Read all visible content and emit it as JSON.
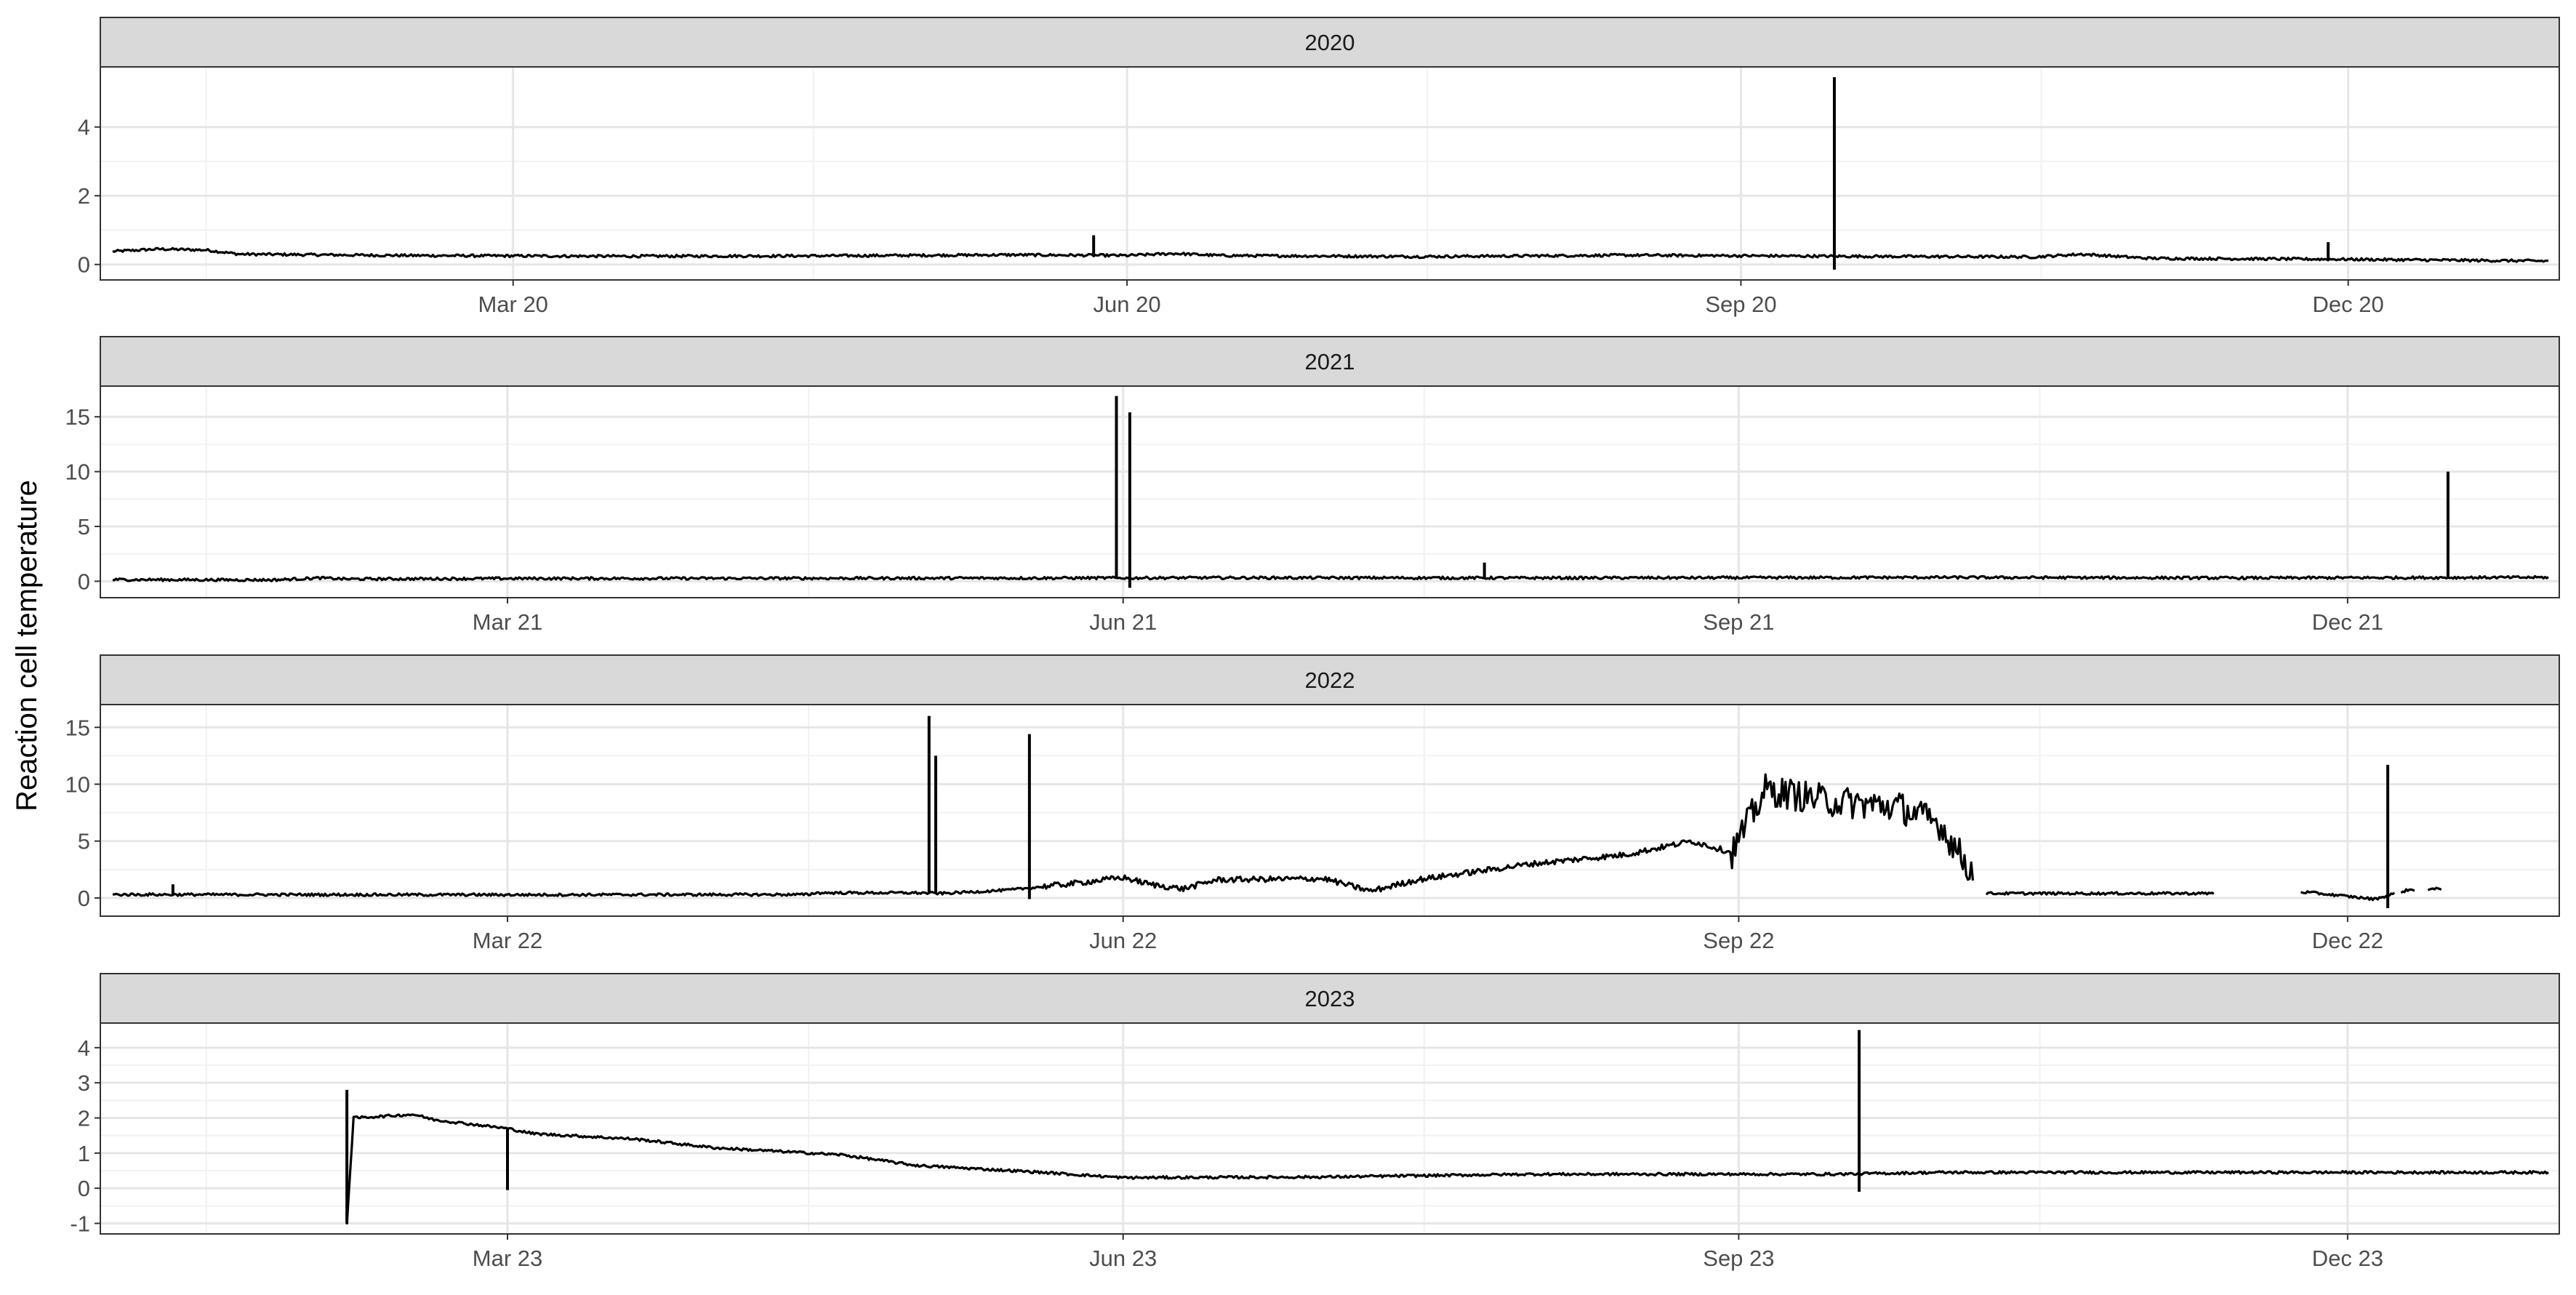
{
  "chart_data": {
    "type": "line",
    "title": "",
    "ylabel": "Reaction cell temperature",
    "xlabel": "",
    "grid": true,
    "line_color": "#000000",
    "strip_color": "#d9d9d9",
    "panels": [
      {
        "name": "2020",
        "ylim": [
          -0.45,
          5.75
        ],
        "yticks": [
          0,
          2,
          4
        ],
        "xticks": [
          {
            "date": "2020-03-01",
            "label": "Mar 20"
          },
          {
            "date": "2020-06-01",
            "label": "Jun 20"
          },
          {
            "date": "2020-09-01",
            "label": "Sep 20"
          },
          {
            "date": "2020-12-01",
            "label": "Dec 20"
          }
        ],
        "baseline": [
          [
            "2020-01-01",
            0.38
          ],
          [
            "2020-01-08",
            0.45
          ],
          [
            "2020-01-15",
            0.42
          ],
          [
            "2020-01-20",
            0.3
          ],
          [
            "2020-02-15",
            0.26
          ],
          [
            "2020-03-15",
            0.24
          ],
          [
            "2020-04-15",
            0.25
          ],
          [
            "2020-05-15",
            0.28
          ],
          [
            "2020-06-01",
            0.26
          ],
          [
            "2020-06-08",
            0.32
          ],
          [
            "2020-06-15",
            0.26
          ],
          [
            "2020-07-15",
            0.23
          ],
          [
            "2020-08-15",
            0.27
          ],
          [
            "2020-09-15",
            0.24
          ],
          [
            "2020-10-15",
            0.22
          ],
          [
            "2020-10-22",
            0.3
          ],
          [
            "2020-11-01",
            0.18
          ],
          [
            "2020-12-01",
            0.15
          ],
          [
            "2020-12-31",
            0.1
          ]
        ],
        "spikes": [
          {
            "date": "2020-05-27",
            "max": 0.85,
            "min": 0.3
          },
          {
            "date": "2020-09-15",
            "max": 5.45,
            "min": -0.15
          },
          {
            "date": "2020-11-28",
            "max": 0.65,
            "min": 0.15
          }
        ],
        "gaps": []
      },
      {
        "name": "2021",
        "ylim": [
          -1.5,
          17.8
        ],
        "yticks": [
          0,
          5,
          10,
          15
        ],
        "xticks": [
          {
            "date": "2021-03-01",
            "label": "Mar 21"
          },
          {
            "date": "2021-06-01",
            "label": "Jun 21"
          },
          {
            "date": "2021-09-01",
            "label": "Sep 21"
          },
          {
            "date": "2021-12-01",
            "label": "Dec 21"
          }
        ],
        "baseline": [
          [
            "2021-01-01",
            0.15
          ],
          [
            "2021-01-25",
            0.12
          ],
          [
            "2021-02-01",
            0.3
          ],
          [
            "2021-02-05",
            0.2
          ],
          [
            "2021-03-01",
            0.25
          ],
          [
            "2021-04-15",
            0.27
          ],
          [
            "2021-05-31",
            0.3
          ],
          [
            "2021-06-15",
            0.32
          ],
          [
            "2021-08-01",
            0.3
          ],
          [
            "2021-09-01",
            0.32
          ],
          [
            "2021-10-01",
            0.35
          ],
          [
            "2021-11-15",
            0.3
          ],
          [
            "2021-12-31",
            0.35
          ]
        ],
        "spikes": [
          {
            "date": "2021-05-31",
            "max": 16.9,
            "min": 0.2
          },
          {
            "date": "2021-06-02",
            "max": 15.4,
            "min": -0.6
          },
          {
            "date": "2021-07-25",
            "max": 1.7,
            "min": 0.3
          },
          {
            "date": "2021-12-16",
            "max": 10.0,
            "min": 0.3
          }
        ],
        "gaps": []
      },
      {
        "name": "2022",
        "ylim": [
          -1.6,
          17.0
        ],
        "yticks": [
          0,
          5,
          10,
          15
        ],
        "xticks": [
          {
            "date": "2022-03-01",
            "label": "Mar 22"
          },
          {
            "date": "2022-06-01",
            "label": "Jun 22"
          },
          {
            "date": "2022-09-01",
            "label": "Sep 22"
          },
          {
            "date": "2022-12-01",
            "label": "Dec 22"
          }
        ],
        "baseline": [
          [
            "2022-01-01",
            0.3
          ],
          [
            "2022-03-01",
            0.28
          ],
          [
            "2022-04-15",
            0.3
          ],
          [
            "2022-04-16",
            0.45
          ],
          [
            "2022-05-01",
            0.45
          ],
          [
            "2022-05-05",
            0.4
          ],
          [
            "2022-05-15",
            0.7
          ],
          [
            "2022-05-25",
            1.3
          ],
          [
            "2022-06-01",
            1.8
          ],
          [
            "2022-06-05",
            1.2
          ],
          [
            "2022-06-10",
            0.8
          ],
          [
            "2022-06-15",
            1.6
          ],
          [
            "2022-07-01",
            1.7
          ],
          [
            "2022-07-08",
            0.6
          ],
          [
            "2022-07-15",
            1.6
          ],
          [
            "2022-08-01",
            3.0
          ],
          [
            "2022-08-15",
            3.8
          ],
          [
            "2022-08-25",
            5.0
          ],
          [
            "2022-08-31",
            4.0
          ],
          [
            "2022-09-05",
            9.5
          ],
          [
            "2022-09-15",
            8.5
          ],
          [
            "2022-09-25",
            8.0
          ],
          [
            "2022-10-01",
            6.5
          ],
          [
            "2022-10-08",
            0.4
          ],
          [
            "2022-11-10",
            0.4
          ],
          [
            "2022-11-25",
            0.5
          ],
          [
            "2022-12-05",
            -0.1
          ],
          [
            "2022-12-10",
            0.7
          ],
          [
            "2022-12-15",
            0.8
          ]
        ],
        "noisy_ranges": [
          {
            "start": "2022-05-20",
            "end": "2022-08-30",
            "amplitude": 0.5
          },
          {
            "start": "2022-08-31",
            "end": "2022-10-06",
            "amplitude": 2.8
          }
        ],
        "spikes": [
          {
            "date": "2022-01-10",
            "max": 1.2,
            "min": 0.3
          },
          {
            "date": "2022-05-03",
            "max": 16.0,
            "min": 0.4
          },
          {
            "date": "2022-05-04",
            "max": 12.5,
            "min": 0.4
          },
          {
            "date": "2022-05-18",
            "max": 14.4,
            "min": -0.1
          },
          {
            "date": "2022-12-07",
            "max": 11.7,
            "min": -0.9
          }
        ],
        "gaps": [
          {
            "start": "2022-10-06",
            "end": "2022-10-08"
          },
          {
            "start": "2022-11-11",
            "end": "2022-11-24"
          },
          {
            "start": "2022-12-08",
            "end": "2022-12-09"
          },
          {
            "start": "2022-12-11",
            "end": "2022-12-13"
          }
        ]
      },
      {
        "name": "2023",
        "ylim": [
          -1.3,
          4.7
        ],
        "yticks": [
          -1,
          0,
          1,
          2,
          3,
          4
        ],
        "xticks": [
          {
            "date": "2023-03-01",
            "label": "Mar 23"
          },
          {
            "date": "2023-06-01",
            "label": "Jun 23"
          },
          {
            "date": "2023-09-01",
            "label": "Sep 23"
          },
          {
            "date": "2023-12-01",
            "label": "Dec 23"
          }
        ],
        "baseline": [
          [
            "2023-02-05",
            -1.0
          ],
          [
            "2023-02-06",
            2.0
          ],
          [
            "2023-02-15",
            2.1
          ],
          [
            "2023-02-18",
            1.95
          ],
          [
            "2023-03-01",
            1.7
          ],
          [
            "2023-03-05",
            1.55
          ],
          [
            "2023-03-20",
            1.4
          ],
          [
            "2023-04-01",
            1.15
          ],
          [
            "2023-04-20",
            0.95
          ],
          [
            "2023-05-01",
            0.65
          ],
          [
            "2023-05-20",
            0.45
          ],
          [
            "2023-06-01",
            0.3
          ],
          [
            "2023-07-01",
            0.32
          ],
          [
            "2023-08-01",
            0.4
          ],
          [
            "2023-09-15",
            0.4
          ],
          [
            "2023-10-01",
            0.45
          ],
          [
            "2023-12-31",
            0.45
          ]
        ],
        "spikes": [
          {
            "date": "2023-02-05",
            "max": 2.8,
            "min": -1.0
          },
          {
            "date": "2023-03-01",
            "max": 1.7,
            "min": -0.05
          },
          {
            "date": "2023-09-19",
            "max": 4.5,
            "min": -0.1
          }
        ],
        "gaps": []
      }
    ]
  }
}
